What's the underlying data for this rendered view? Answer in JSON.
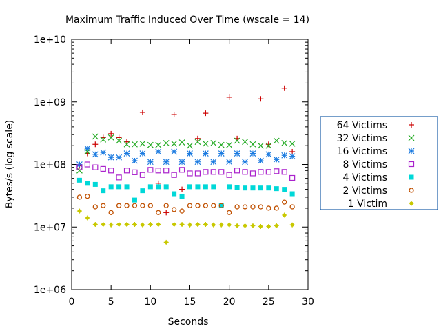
{
  "chart_data": {
    "type": "scatter",
    "title": "Maximum Traffic Induced Over Time (wscale = 14)",
    "xlabel": "Seconds",
    "ylabel": "Bytes/s (log scale)",
    "xlim": [
      0,
      30
    ],
    "ylim": [
      1000000,
      10000000000
    ],
    "yscale": "log",
    "grid": false,
    "legend_position": "right",
    "x_ticks": [
      "0",
      "5",
      "10",
      "15",
      "20",
      "25",
      "30"
    ],
    "y_ticks": [
      "1e+06",
      "1e+07",
      "1e+08",
      "1e+09",
      "1e+10"
    ],
    "series": [
      {
        "name": "64 Victims",
        "marker": "plus",
        "color": "#cc0000",
        "x": [
          1,
          2,
          3,
          4,
          5,
          6,
          7,
          9,
          11,
          12,
          13,
          14,
          16,
          17,
          20,
          21,
          24,
          25,
          27,
          28
        ],
        "y": [
          95000000,
          150000000,
          210000000,
          270000000,
          310000000,
          270000000,
          230000000,
          680000000,
          50000000,
          17000000,
          630000000,
          40000000,
          260000000,
          660000000,
          1190000000,
          260000000,
          1120000000,
          210000000,
          1660000000,
          160000000
        ]
      },
      {
        "name": "32 Victims",
        "marker": "cross",
        "color": "#22aa22",
        "x": [
          1,
          2,
          3,
          4,
          5,
          6,
          7,
          8,
          9,
          10,
          11,
          12,
          13,
          14,
          15,
          16,
          17,
          18,
          19,
          20,
          21,
          22,
          23,
          24,
          25,
          26,
          27,
          28
        ],
        "y": [
          80000000,
          160000000,
          280000000,
          250000000,
          270000000,
          240000000,
          210000000,
          210000000,
          215000000,
          205000000,
          205000000,
          220000000,
          215000000,
          225000000,
          200000000,
          230000000,
          215000000,
          220000000,
          205000000,
          205000000,
          240000000,
          230000000,
          210000000,
          200000000,
          200000000,
          240000000,
          220000000,
          215000000
        ]
      },
      {
        "name": "16 Victims",
        "marker": "star",
        "color": "#1a7ae0",
        "x": [
          1,
          2,
          3,
          4,
          5,
          6,
          7,
          8,
          9,
          10,
          11,
          12,
          13,
          14,
          15,
          16,
          17,
          18,
          19,
          20,
          21,
          22,
          23,
          24,
          25,
          26,
          27,
          28
        ],
        "y": [
          100000000,
          180000000,
          145000000,
          155000000,
          130000000,
          130000000,
          150000000,
          115000000,
          150000000,
          110000000,
          160000000,
          110000000,
          160000000,
          110000000,
          150000000,
          110000000,
          150000000,
          110000000,
          150000000,
          110000000,
          150000000,
          110000000,
          150000000,
          115000000,
          145000000,
          120000000,
          140000000,
          135000000
        ]
      },
      {
        "name": "8 Victims",
        "marker": "square-open",
        "color": "#aa22cc",
        "x": [
          1,
          2,
          3,
          4,
          5,
          6,
          7,
          8,
          9,
          10,
          11,
          12,
          13,
          14,
          15,
          16,
          17,
          18,
          19,
          20,
          21,
          22,
          23,
          24,
          25,
          26,
          27,
          28
        ],
        "y": [
          90000000,
          100000000,
          90000000,
          85000000,
          80000000,
          62000000,
          80000000,
          75000000,
          68000000,
          82000000,
          80000000,
          80000000,
          68000000,
          82000000,
          72000000,
          72000000,
          76000000,
          76000000,
          76000000,
          68000000,
          80000000,
          76000000,
          72000000,
          76000000,
          76000000,
          78000000,
          76000000,
          61000000
        ]
      },
      {
        "name": "4 Victims",
        "marker": "square-filled",
        "color": "#00d8d8",
        "x": [
          1,
          2,
          3,
          4,
          5,
          6,
          7,
          8,
          9,
          10,
          11,
          12,
          13,
          14,
          15,
          16,
          17,
          18,
          19,
          20,
          21,
          22,
          23,
          24,
          25,
          26,
          27,
          28
        ],
        "y": [
          56000000,
          50000000,
          48000000,
          38000000,
          44000000,
          44000000,
          44000000,
          27000000,
          38000000,
          44000000,
          44000000,
          44000000,
          34000000,
          31000000,
          44000000,
          44000000,
          44000000,
          44000000,
          22000000,
          44000000,
          43000000,
          42000000,
          42000000,
          42000000,
          42000000,
          41000000,
          40000000,
          34000000
        ]
      },
      {
        "name": "2 Victims",
        "marker": "circle-open",
        "color": "#c05000",
        "x": [
          1,
          2,
          3,
          4,
          5,
          6,
          7,
          8,
          9,
          10,
          11,
          12,
          13,
          14,
          15,
          16,
          17,
          18,
          19,
          20,
          21,
          22,
          23,
          24,
          25,
          26,
          27,
          28
        ],
        "y": [
          30000000,
          31000000,
          21000000,
          22000000,
          17000000,
          22000000,
          22000000,
          22000000,
          22000000,
          22000000,
          17000000,
          22000000,
          19000000,
          18000000,
          22000000,
          22000000,
          22000000,
          22000000,
          22000000,
          17000000,
          21000000,
          21000000,
          21000000,
          21000000,
          20000000,
          20000000,
          25000000,
          21000000
        ]
      },
      {
        "name": "1 Victim",
        "marker": "star-filled",
        "color": "#c8c800",
        "x": [
          1,
          2,
          3,
          4,
          5,
          6,
          7,
          8,
          9,
          10,
          11,
          12,
          13,
          14,
          15,
          16,
          17,
          18,
          19,
          20,
          21,
          22,
          23,
          24,
          25,
          26,
          27,
          28
        ],
        "y": [
          18000000,
          14000000,
          11000000,
          11000000,
          10800000,
          11000000,
          11000000,
          11000000,
          10800000,
          11000000,
          11000000,
          5700000,
          11000000,
          11000000,
          10800000,
          11000000,
          11000000,
          10800000,
          10800000,
          10800000,
          10500000,
          10500000,
          10500000,
          10200000,
          10200000,
          10500000,
          15500000,
          10800000
        ]
      }
    ]
  }
}
